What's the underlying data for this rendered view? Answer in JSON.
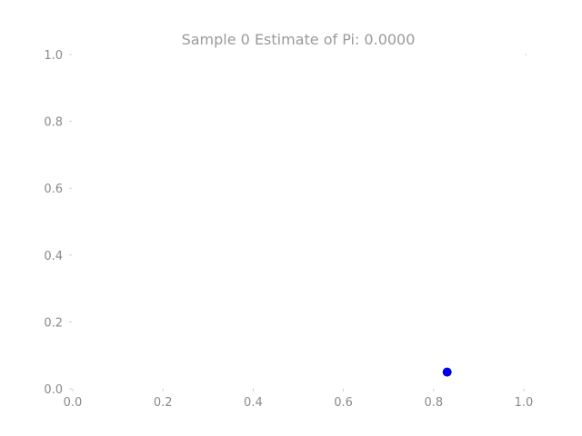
{
  "chart_data": {
    "type": "scatter",
    "title": "Sample 0 Estimate of Pi: 0.0000",
    "xlabel": "",
    "ylabel": "",
    "xlim": [
      0.0,
      1.0
    ],
    "ylim": [
      0.0,
      1.0
    ],
    "xticks": [
      "0.0",
      "0.2",
      "0.4",
      "0.6",
      "0.8",
      "1.0"
    ],
    "yticks": [
      "0.0",
      "0.2",
      "0.4",
      "0.6",
      "0.8",
      "1.0"
    ],
    "grid": false,
    "series": [
      {
        "color": "#0000ee",
        "points": [
          {
            "x": 0.83,
            "y": 0.05
          }
        ]
      }
    ]
  }
}
